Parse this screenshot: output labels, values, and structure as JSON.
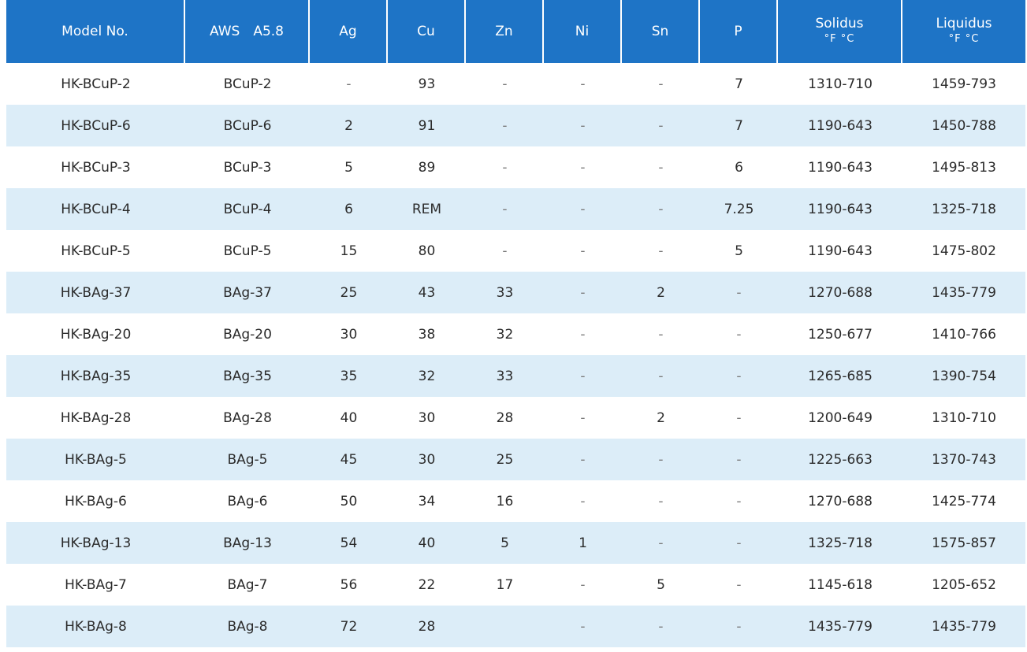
{
  "columns": [
    {
      "label": "Model No.",
      "unit": ""
    },
    {
      "label": "AWS　A5.8",
      "unit": ""
    },
    {
      "label": "Ag",
      "unit": ""
    },
    {
      "label": "Cu",
      "unit": ""
    },
    {
      "label": "Zn",
      "unit": ""
    },
    {
      "label": "Ni",
      "unit": ""
    },
    {
      "label": "Sn",
      "unit": ""
    },
    {
      "label": "P",
      "unit": ""
    },
    {
      "label": "Solidus",
      "unit": "°F °C"
    },
    {
      "label": "Liquidus",
      "unit": "°F °C"
    }
  ],
  "rows": [
    [
      "HK-BCuP-2",
      "BCuP-2",
      "-",
      "93",
      "-",
      "-",
      "-",
      "7",
      "1310-710",
      "1459-793"
    ],
    [
      "HK-BCuP-6",
      "BCuP-6",
      "2",
      "91",
      "-",
      "-",
      "-",
      "7",
      "1190-643",
      "1450-788"
    ],
    [
      "HK-BCuP-3",
      "BCuP-3",
      "5",
      "89",
      "-",
      "-",
      "-",
      "6",
      "1190-643",
      "1495-813"
    ],
    [
      "HK-BCuP-4",
      "BCuP-4",
      "6",
      "REM",
      "-",
      "-",
      "-",
      "7.25",
      "1190-643",
      "1325-718"
    ],
    [
      "HK-BCuP-5",
      "BCuP-5",
      "15",
      "80",
      "-",
      "-",
      "-",
      "5",
      "1190-643",
      "1475-802"
    ],
    [
      "HK-BAg-37",
      "BAg-37",
      "25",
      "43",
      "33",
      "-",
      "2",
      "-",
      "1270-688",
      "1435-779"
    ],
    [
      "HK-BAg-20",
      "BAg-20",
      "30",
      "38",
      "32",
      "-",
      "-",
      "-",
      "1250-677",
      "1410-766"
    ],
    [
      "HK-BAg-35",
      "BAg-35",
      "35",
      "32",
      "33",
      "-",
      "-",
      "-",
      "1265-685",
      "1390-754"
    ],
    [
      "HK-BAg-28",
      "BAg-28",
      "40",
      "30",
      "28",
      "-",
      "2",
      "-",
      "1200-649",
      "1310-710"
    ],
    [
      "HK-BAg-5",
      "BAg-5",
      "45",
      "30",
      "25",
      "-",
      "-",
      "-",
      "1225-663",
      "1370-743"
    ],
    [
      "HK-BAg-6",
      "BAg-6",
      "50",
      "34",
      "16",
      "-",
      "-",
      "-",
      "1270-688",
      "1425-774"
    ],
    [
      "HK-BAg-13",
      "BAg-13",
      "54",
      "40",
      "5",
      "1",
      "-",
      "-",
      "1325-718",
      "1575-857"
    ],
    [
      "HK-BAg-7",
      "BAg-7",
      "56",
      "22",
      "17",
      "-",
      "5",
      "-",
      "1145-618",
      "1205-652"
    ],
    [
      "HK-BAg-8",
      "BAg-8",
      "72",
      "28",
      "",
      "-",
      "-",
      "-",
      "1435-779",
      "1435-779"
    ]
  ],
  "colors": {
    "header_bg": "#1e74c6",
    "header_text": "#ffffff",
    "alt_row_bg": "#dcedf8"
  }
}
